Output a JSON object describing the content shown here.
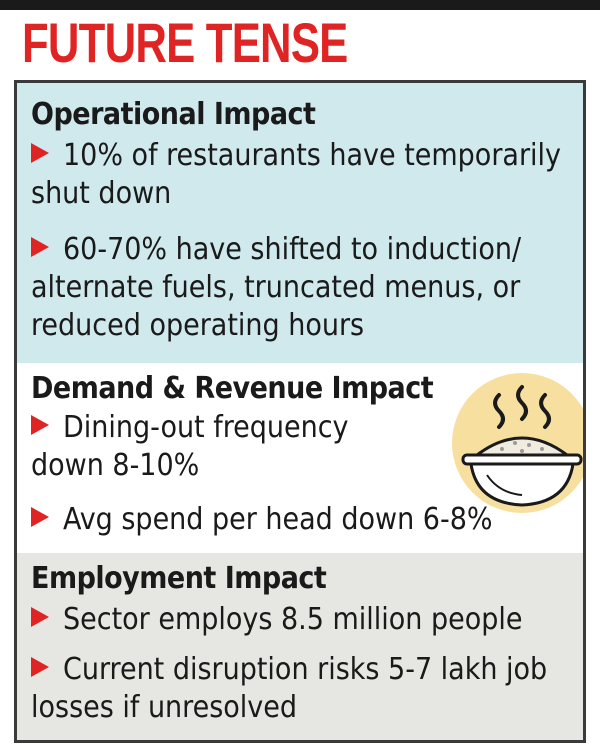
{
  "title": "FUTURE TENSE",
  "sections": [
    {
      "heading": "Operational Impact",
      "items": [
        "10% of restaurants have temporarily shut down",
        "60-70% have shifted to induction/ alternate fuels, truncated menus, or reduced operating hours"
      ]
    },
    {
      "heading": "Demand & Revenue Impact",
      "items": [
        "Dining-out frequency down 8-10%",
        "Avg spend per head down 6-8%"
      ]
    },
    {
      "heading": "Employment Impact",
      "items": [
        "Sector employs 8.5 million people",
        "Current disruption risks 5-7 lakh job losses if unresolved"
      ]
    }
  ],
  "icons": {
    "bullet": "arrow-bullet-icon",
    "illustration": "steaming-bowl-icon"
  },
  "colors": {
    "accent_red": "#e02424",
    "section1_bg": "#cfe9ec",
    "section2_bg": "#ffffff",
    "section3_bg": "#e6e6e2",
    "illustration_circle": "#f7dfa0"
  }
}
